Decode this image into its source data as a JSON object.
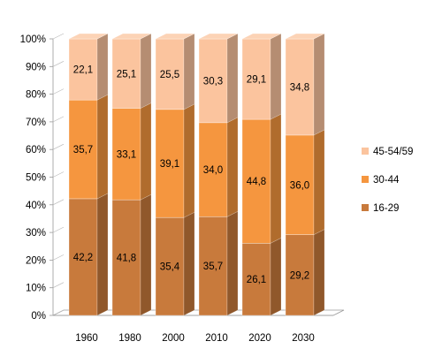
{
  "chart_data": {
    "type": "bar",
    "stacked": true,
    "percent": true,
    "three_d": true,
    "categories": [
      "1960",
      "1980",
      "2000",
      "2010",
      "2020",
      "2030"
    ],
    "series": [
      {
        "name": "16-29",
        "values": [
          42.2,
          41.8,
          35.4,
          35.7,
          26.1,
          29.2
        ],
        "labels": [
          "42,2",
          "41,8",
          "35,4",
          "35,7",
          "26,1",
          "29,2"
        ],
        "color": "#c87a3c"
      },
      {
        "name": "30-44",
        "values": [
          35.7,
          33.1,
          39.1,
          34.0,
          44.8,
          36.0
        ],
        "labels": [
          "35,7",
          "33,1",
          "39,1",
          "34,0",
          "44,8",
          "36,0"
        ],
        "color": "#f5963f"
      },
      {
        "name": "45-54/59",
        "values": [
          22.1,
          25.1,
          25.5,
          30.3,
          29.1,
          34.8
        ],
        "labels": [
          "22,1",
          "25,1",
          "25,5",
          "30,3",
          "29,1",
          "34,8"
        ],
        "color": "#fbc49e"
      }
    ],
    "yticks": [
      "0%",
      "10%",
      "20%",
      "30%",
      "40%",
      "50%",
      "60%",
      "70%",
      "80%",
      "90%",
      "100%"
    ],
    "ylim": [
      0,
      100
    ],
    "grid": false,
    "legend_position": "right"
  }
}
